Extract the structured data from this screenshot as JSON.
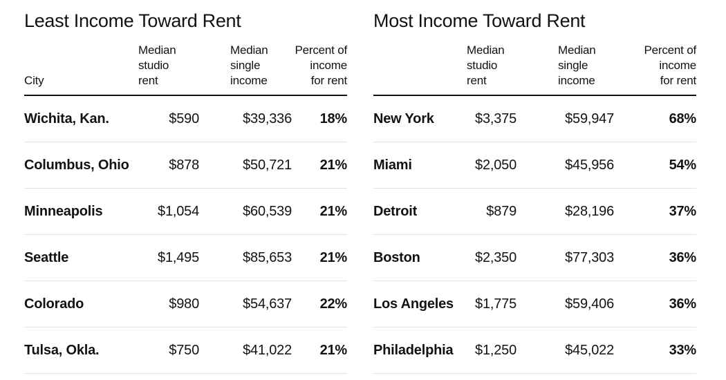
{
  "colors": {
    "background": "#ffffff",
    "text": "#121212",
    "header_rule": "#121212",
    "row_separator": "#e2e2e2"
  },
  "tables": [
    {
      "title": "Least Income Toward Rent",
      "columns": {
        "city": "City",
        "rent": "Median\nstudio\nrent",
        "income": "Median\nsingle\nincome",
        "percent": "Percent of\nincome\nfor rent"
      },
      "rows": [
        {
          "city": "Wichita, Kan.",
          "rent": "$590",
          "income": "$39,336",
          "percent": "18%"
        },
        {
          "city": "Columbus, Ohio",
          "rent": "$878",
          "income": "$50,721",
          "percent": "21%"
        },
        {
          "city": "Minneapolis",
          "rent": "$1,054",
          "income": "$60,539",
          "percent": "21%"
        },
        {
          "city": "Seattle",
          "rent": "$1,495",
          "income": "$85,653",
          "percent": "21%"
        },
        {
          "city": "Colorado",
          "rent": "$980",
          "income": "$54,637",
          "percent": "22%"
        },
        {
          "city": "Tulsa, Okla.",
          "rent": "$750",
          "income": "$41,022",
          "percent": "21%"
        }
      ]
    },
    {
      "title": "Most Income Toward Rent",
      "columns": {
        "city": "",
        "rent": "Median\nstudio\nrent",
        "income": "Median\nsingle\nincome",
        "percent": "Percent of\nincome\nfor rent"
      },
      "rows": [
        {
          "city": "New York",
          "rent": "$3,375",
          "income": "$59,947",
          "percent": "68%"
        },
        {
          "city": "Miami",
          "rent": "$2,050",
          "income": "$45,956",
          "percent": "54%"
        },
        {
          "city": "Detroit",
          "rent": "$879",
          "income": "$28,196",
          "percent": "37%"
        },
        {
          "city": "Boston",
          "rent": "$2,350",
          "income": "$77,303",
          "percent": "36%"
        },
        {
          "city": "Los Angeles",
          "rent": "$1,775",
          "income": "$59,406",
          "percent": "36%"
        },
        {
          "city": "Philadelphia",
          "rent": "$1,250",
          "income": "$45,022",
          "percent": "33%"
        }
      ]
    }
  ],
  "chart_data": [
    {
      "type": "table",
      "title": "Least Income Toward Rent",
      "columns": [
        "City",
        "Median studio rent",
        "Median single income",
        "Percent of income for rent"
      ],
      "rows": [
        [
          "Wichita, Kan.",
          "$590",
          "$39,336",
          "18%"
        ],
        [
          "Columbus, Ohio",
          "$878",
          "$50,721",
          "21%"
        ],
        [
          "Minneapolis",
          "$1,054",
          "$60,539",
          "21%"
        ],
        [
          "Seattle",
          "$1,495",
          "$85,653",
          "21%"
        ],
        [
          "Colorado",
          "$980",
          "$54,637",
          "22%"
        ],
        [
          "Tulsa, Okla.",
          "$750",
          "$41,022",
          "21%"
        ]
      ]
    },
    {
      "type": "table",
      "title": "Most Income Toward Rent",
      "columns": [
        "",
        "Median studio rent",
        "Median single income",
        "Percent of income for rent"
      ],
      "rows": [
        [
          "New York",
          "$3,375",
          "$59,947",
          "68%"
        ],
        [
          "Miami",
          "$2,050",
          "$45,956",
          "54%"
        ],
        [
          "Detroit",
          "$879",
          "$28,196",
          "37%"
        ],
        [
          "Boston",
          "$2,350",
          "$77,303",
          "36%"
        ],
        [
          "Los Angeles",
          "$1,775",
          "$59,406",
          "36%"
        ],
        [
          "Philadelphia",
          "$1,250",
          "$45,022",
          "33%"
        ]
      ]
    }
  ]
}
